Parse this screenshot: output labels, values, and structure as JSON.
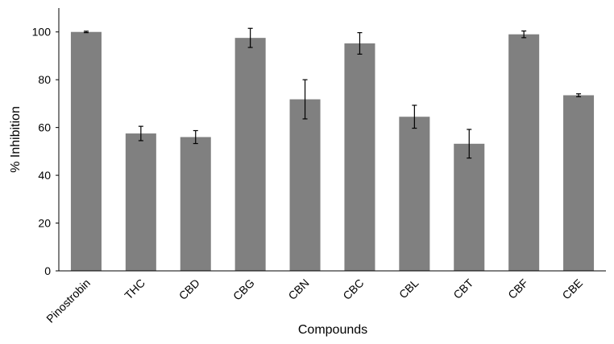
{
  "chart_data": {
    "type": "bar",
    "xlabel": "Compounds",
    "ylabel": "% Inhibition",
    "ylim": [
      0,
      110
    ],
    "yticks": [
      "0",
      "20",
      "40",
      "60",
      "80",
      "100"
    ],
    "grid": false,
    "legend": "none",
    "bar_color": "#808080",
    "categories": [
      "Pinostrobin",
      "THC",
      "CBD",
      "CBG",
      "CBN",
      "CBC",
      "CBL",
      "CBT",
      "CBF",
      "CBE"
    ],
    "values": [
      100,
      57.5,
      56,
      97.5,
      71.8,
      95.2,
      64.5,
      53.2,
      99,
      73.5
    ],
    "errors": [
      0.3,
      3,
      2.7,
      4,
      8.2,
      4.5,
      4.8,
      6,
      1.4,
      0.6
    ]
  }
}
